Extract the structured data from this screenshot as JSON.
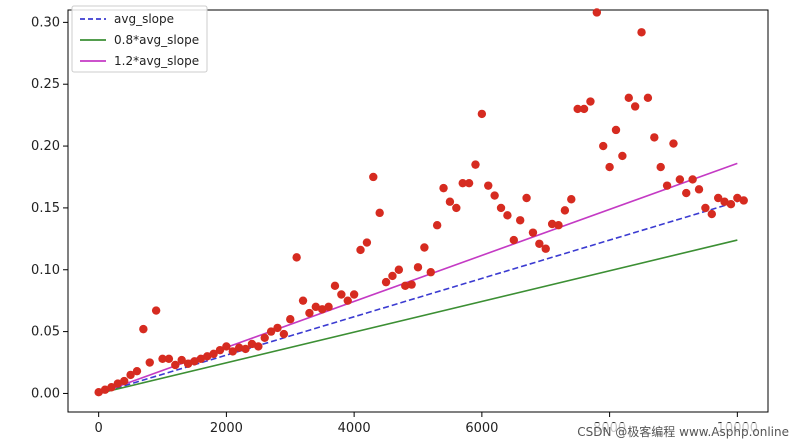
{
  "chart_data": {
    "type": "scatter",
    "title": "",
    "xlabel": "",
    "ylabel": "",
    "xlim": [
      -480,
      10480
    ],
    "ylim": [
      -0.015,
      0.31
    ],
    "xticks": [
      0,
      2000,
      4000,
      6000,
      8000,
      10000
    ],
    "xtick_labels": [
      "0",
      "2000",
      "4000",
      "6000",
      "8000",
      "10000"
    ],
    "yticks": [
      0.0,
      0.05,
      0.1,
      0.15,
      0.2,
      0.25,
      0.3
    ],
    "ytick_labels": [
      "0.00",
      "0.05",
      "0.10",
      "0.15",
      "0.20",
      "0.25",
      "0.30"
    ],
    "grid": false,
    "legend_position": "top-left",
    "lines": [
      {
        "name": "avg_slope",
        "style": "dashed",
        "color": "#3b3bd1",
        "x": [
          0,
          10000
        ],
        "y": [
          0.0,
          0.155
        ]
      },
      {
        "name": "0.8*avg_slope",
        "style": "solid",
        "color": "#3c8f34",
        "x": [
          0,
          10000
        ],
        "y": [
          0.0,
          0.124
        ]
      },
      {
        "name": "1.2*avg_slope",
        "style": "solid",
        "color": "#c43ac4",
        "x": [
          0,
          10000
        ],
        "y": [
          0.0,
          0.186
        ]
      }
    ],
    "scatter": {
      "color": "#d62b20",
      "points": [
        [
          0,
          0.001
        ],
        [
          100,
          0.003
        ],
        [
          200,
          0.005
        ],
        [
          300,
          0.008
        ],
        [
          400,
          0.01
        ],
        [
          500,
          0.015
        ],
        [
          600,
          0.018
        ],
        [
          700,
          0.052
        ],
        [
          800,
          0.025
        ],
        [
          900,
          0.067
        ],
        [
          1000,
          0.028
        ],
        [
          1100,
          0.028
        ],
        [
          1200,
          0.023
        ],
        [
          1300,
          0.027
        ],
        [
          1400,
          0.024
        ],
        [
          1500,
          0.026
        ],
        [
          1600,
          0.028
        ],
        [
          1700,
          0.03
        ],
        [
          1800,
          0.032
        ],
        [
          1900,
          0.035
        ],
        [
          2000,
          0.038
        ],
        [
          2100,
          0.034
        ],
        [
          2200,
          0.037
        ],
        [
          2300,
          0.036
        ],
        [
          2400,
          0.04
        ],
        [
          2500,
          0.038
        ],
        [
          2600,
          0.045
        ],
        [
          2700,
          0.05
        ],
        [
          2800,
          0.053
        ],
        [
          2900,
          0.048
        ],
        [
          3000,
          0.06
        ],
        [
          3100,
          0.11
        ],
        [
          3200,
          0.075
        ],
        [
          3300,
          0.065
        ],
        [
          3400,
          0.07
        ],
        [
          3500,
          0.068
        ],
        [
          3600,
          0.07
        ],
        [
          3700,
          0.087
        ],
        [
          3800,
          0.08
        ],
        [
          3900,
          0.075
        ],
        [
          4000,
          0.08
        ],
        [
          4100,
          0.116
        ],
        [
          4200,
          0.122
        ],
        [
          4300,
          0.175
        ],
        [
          4400,
          0.146
        ],
        [
          4500,
          0.09
        ],
        [
          4600,
          0.095
        ],
        [
          4700,
          0.1
        ],
        [
          4800,
          0.087
        ],
        [
          4900,
          0.088
        ],
        [
          5000,
          0.102
        ],
        [
          5100,
          0.118
        ],
        [
          5200,
          0.098
        ],
        [
          5300,
          0.136
        ],
        [
          5400,
          0.166
        ],
        [
          5500,
          0.155
        ],
        [
          5600,
          0.15
        ],
        [
          5700,
          0.17
        ],
        [
          5800,
          0.17
        ],
        [
          5900,
          0.185
        ],
        [
          6000,
          0.226
        ],
        [
          6100,
          0.168
        ],
        [
          6200,
          0.16
        ],
        [
          6300,
          0.15
        ],
        [
          6400,
          0.144
        ],
        [
          6500,
          0.124
        ],
        [
          6600,
          0.14
        ],
        [
          6700,
          0.158
        ],
        [
          6800,
          0.13
        ],
        [
          6900,
          0.121
        ],
        [
          7000,
          0.117
        ],
        [
          7100,
          0.137
        ],
        [
          7200,
          0.136
        ],
        [
          7300,
          0.148
        ],
        [
          7400,
          0.157
        ],
        [
          7500,
          0.23
        ],
        [
          7600,
          0.23
        ],
        [
          7700,
          0.236
        ],
        [
          7800,
          0.308
        ],
        [
          7900,
          0.2
        ],
        [
          8000,
          0.183
        ],
        [
          8100,
          0.213
        ],
        [
          8200,
          0.192
        ],
        [
          8300,
          0.239
        ],
        [
          8400,
          0.232
        ],
        [
          8500,
          0.292
        ],
        [
          8600,
          0.239
        ],
        [
          8700,
          0.207
        ],
        [
          8800,
          0.183
        ],
        [
          8900,
          0.168
        ],
        [
          9000,
          0.202
        ],
        [
          9100,
          0.173
        ],
        [
          9200,
          0.162
        ],
        [
          9300,
          0.173
        ],
        [
          9400,
          0.165
        ],
        [
          9500,
          0.15
        ],
        [
          9600,
          0.145
        ],
        [
          9700,
          0.158
        ],
        [
          9800,
          0.155
        ],
        [
          9900,
          0.153
        ],
        [
          10000,
          0.158
        ],
        [
          10100,
          0.156
        ]
      ]
    }
  },
  "watermark": {
    "text": "CSDN @极客编程 www.Asphp.online"
  }
}
